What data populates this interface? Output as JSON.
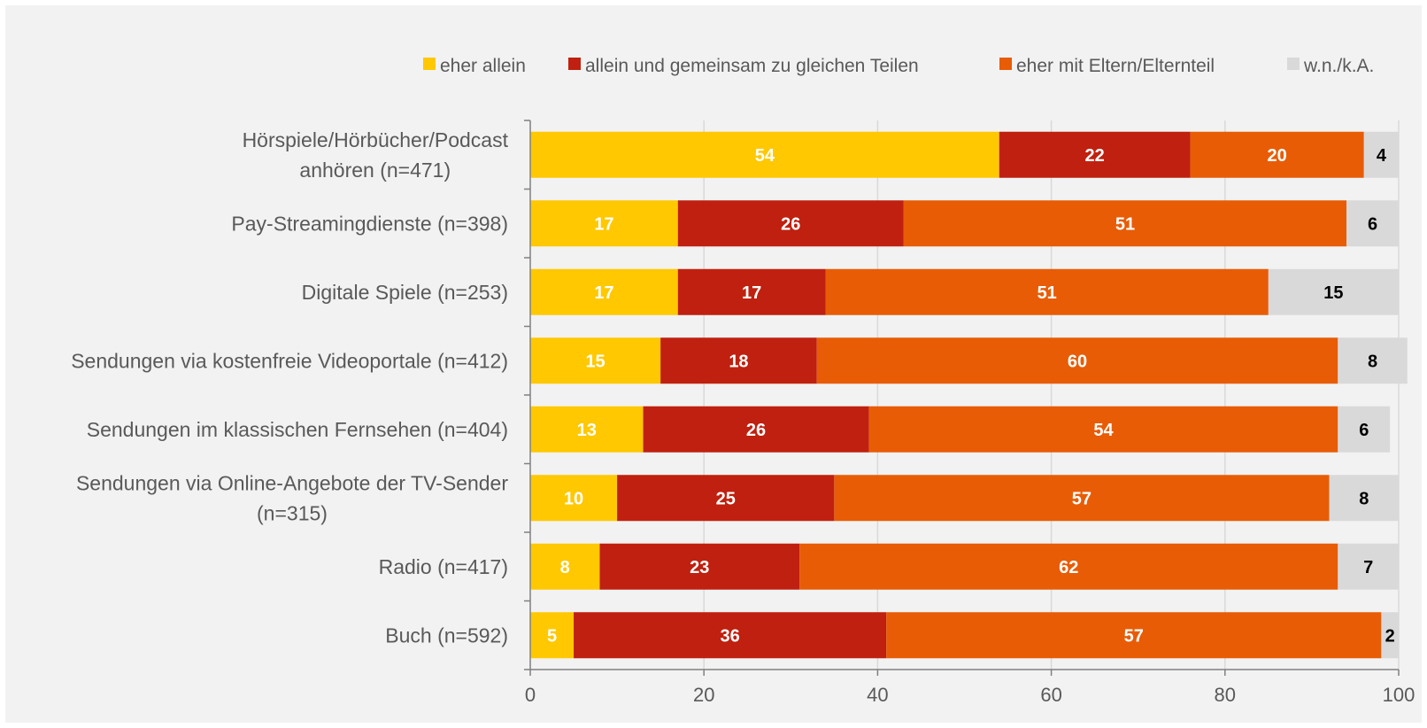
{
  "chart_data": {
    "type": "bar",
    "orientation": "horizontal",
    "stacked": true,
    "xlim": [
      0,
      100
    ],
    "xticks": [
      0,
      20,
      40,
      60,
      80,
      100
    ],
    "grid": true,
    "legend_position": "top-right",
    "background_color": "#f2f2f2",
    "categories": [
      "Hörspiele/Hörbücher/Podcast anhören (n=471)",
      "Pay-Streamingdienste (n=398)",
      "Digitale Spiele (n=253)",
      "Sendungen via kostenfreie Videoportale (n=412)",
      "Sendungen im klassischen Fernsehen (n=404)",
      "Sendungen via Online-Angebote der TV-Sender (n=315)",
      "Radio (n=417)",
      "Buch (n=592)"
    ],
    "series": [
      {
        "name": "eher allein",
        "color": "#ffc800",
        "label_color": "#ffffff",
        "values": [
          54,
          17,
          17,
          15,
          13,
          10,
          8,
          5
        ]
      },
      {
        "name": "allein und gemeinsam zu gleichen Teilen",
        "color": "#c0200f",
        "label_color": "#ffffff",
        "values": [
          22,
          26,
          17,
          18,
          26,
          25,
          23,
          36
        ]
      },
      {
        "name": "eher mit Eltern/Elternteil",
        "color": "#e85c06",
        "label_color": "#ffffff",
        "values": [
          20,
          51,
          51,
          60,
          54,
          57,
          62,
          57
        ]
      },
      {
        "name": "w.n./k.A.",
        "color": "#d9d9d9",
        "label_color": "#000000",
        "values": [
          4,
          6,
          15,
          8,
          6,
          8,
          7,
          2
        ]
      }
    ]
  }
}
